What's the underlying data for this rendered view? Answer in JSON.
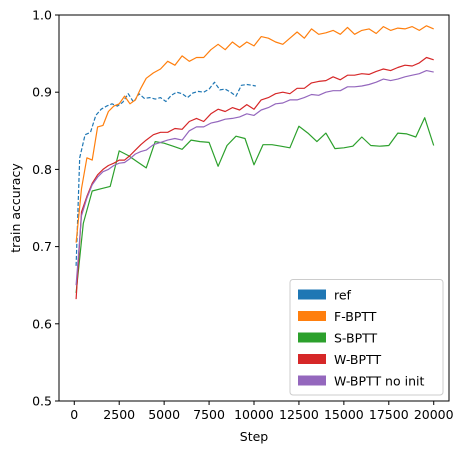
{
  "chart_data": {
    "type": "line",
    "xlabel": "Step",
    "ylabel": "train accuracy",
    "xlim": [
      -850,
      20850
    ],
    "ylim": [
      0.5,
      1.0
    ],
    "xticks": [
      0,
      2500,
      5000,
      7500,
      10000,
      12500,
      15000,
      17500,
      20000
    ],
    "xtick_labels": [
      "0",
      "2500",
      "5000",
      "7500",
      "10000",
      "12500",
      "15000",
      "17500",
      "20000"
    ],
    "yticks": [
      0.5,
      0.6,
      0.7,
      0.8,
      0.9,
      1.0
    ],
    "ytick_labels": [
      "0.5",
      "0.6",
      "0.7",
      "0.8",
      "0.9",
      "1.0"
    ],
    "grid": false,
    "legend_position": "bottom-right",
    "series": [
      {
        "name": "ref",
        "color": "#1f77b4",
        "dashed": true,
        "x": [
          100,
          300,
          600,
          900,
          1200,
          1500,
          1800,
          2100,
          2400,
          2700,
          3000,
          3300,
          3600,
          3900,
          4200,
          4500,
          4800,
          5100,
          5400,
          5700,
          6000,
          6300,
          6600,
          6900,
          7200,
          7500,
          7800,
          8100,
          8400,
          8700,
          9000,
          9300,
          9600,
          9900,
          10100
        ],
        "y": [
          0.675,
          0.815,
          0.845,
          0.848,
          0.87,
          0.878,
          0.882,
          0.885,
          0.882,
          0.887,
          0.898,
          0.887,
          0.898,
          0.892,
          0.893,
          0.891,
          0.893,
          0.888,
          0.896,
          0.9,
          0.898,
          0.893,
          0.899,
          0.901,
          0.9,
          0.904,
          0.913,
          0.903,
          0.904,
          0.9,
          0.895,
          0.909,
          0.91,
          0.909,
          0.908
        ]
      },
      {
        "name": "F-BPTT",
        "color": "#ff7f0e",
        "dashed": false,
        "x": [
          100,
          400,
          700,
          1000,
          1300,
          1600,
          1900,
          2200,
          2500,
          2800,
          3100,
          3400,
          3700,
          4000,
          4400,
          4800,
          5200,
          5600,
          6000,
          6400,
          6800,
          7200,
          7600,
          8000,
          8400,
          8800,
          9200,
          9600,
          10000,
          10400,
          10800,
          11200,
          11600,
          12000,
          12400,
          12800,
          13200,
          13600,
          14000,
          14400,
          14800,
          15200,
          15600,
          16000,
          16400,
          16800,
          17200,
          17600,
          18000,
          18400,
          18800,
          19200,
          19600,
          20000
        ],
        "y": [
          0.705,
          0.775,
          0.815,
          0.812,
          0.855,
          0.857,
          0.875,
          0.882,
          0.885,
          0.895,
          0.885,
          0.89,
          0.905,
          0.918,
          0.925,
          0.93,
          0.94,
          0.935,
          0.947,
          0.94,
          0.945,
          0.945,
          0.955,
          0.962,
          0.955,
          0.965,
          0.958,
          0.965,
          0.96,
          0.972,
          0.97,
          0.965,
          0.962,
          0.97,
          0.978,
          0.97,
          0.982,
          0.975,
          0.977,
          0.98,
          0.975,
          0.984,
          0.975,
          0.98,
          0.982,
          0.976,
          0.985,
          0.98,
          0.983,
          0.982,
          0.985,
          0.98,
          0.986,
          0.982
        ]
      },
      {
        "name": "S-BPTT",
        "color": "#2ca02c",
        "dashed": false,
        "x": [
          100,
          500,
          1000,
          1500,
          2000,
          2500,
          3000,
          3500,
          4000,
          4500,
          5000,
          5500,
          6000,
          6500,
          7000,
          7500,
          8000,
          8500,
          9000,
          9500,
          10000,
          10500,
          11000,
          11500,
          12000,
          12500,
          13000,
          13500,
          14000,
          14500,
          15000,
          15500,
          16000,
          16500,
          17000,
          17500,
          18000,
          18500,
          19000,
          19500,
          20000
        ],
        "y": [
          0.64,
          0.73,
          0.772,
          0.775,
          0.778,
          0.824,
          0.818,
          0.81,
          0.802,
          0.836,
          0.834,
          0.83,
          0.826,
          0.838,
          0.836,
          0.835,
          0.804,
          0.831,
          0.843,
          0.84,
          0.806,
          0.832,
          0.832,
          0.83,
          0.828,
          0.856,
          0.847,
          0.836,
          0.847,
          0.827,
          0.828,
          0.83,
          0.842,
          0.831,
          0.83,
          0.831,
          0.847,
          0.846,
          0.842,
          0.867,
          0.831
        ]
      },
      {
        "name": "W-BPTT",
        "color": "#d62728",
        "dashed": false,
        "x": [
          100,
          400,
          700,
          1000,
          1300,
          1600,
          1900,
          2200,
          2500,
          2800,
          3100,
          3400,
          3700,
          4000,
          4400,
          4800,
          5200,
          5600,
          6000,
          6400,
          6800,
          7200,
          7600,
          8000,
          8400,
          8800,
          9200,
          9600,
          10000,
          10400,
          10800,
          11200,
          11600,
          12000,
          12400,
          12800,
          13200,
          13600,
          14000,
          14400,
          14800,
          15200,
          15600,
          16000,
          16400,
          16800,
          17200,
          17600,
          18000,
          18400,
          18800,
          19200,
          19600,
          20000
        ],
        "y": [
          0.632,
          0.745,
          0.765,
          0.782,
          0.793,
          0.8,
          0.805,
          0.808,
          0.812,
          0.812,
          0.818,
          0.825,
          0.832,
          0.838,
          0.845,
          0.848,
          0.848,
          0.853,
          0.852,
          0.862,
          0.866,
          0.862,
          0.872,
          0.878,
          0.875,
          0.88,
          0.877,
          0.884,
          0.878,
          0.89,
          0.893,
          0.898,
          0.9,
          0.898,
          0.905,
          0.905,
          0.912,
          0.914,
          0.915,
          0.92,
          0.916,
          0.922,
          0.922,
          0.924,
          0.923,
          0.927,
          0.93,
          0.928,
          0.932,
          0.935,
          0.934,
          0.938,
          0.945,
          0.942
        ]
      },
      {
        "name": "W-BPTT no init",
        "color": "#9467bd",
        "dashed": false,
        "x": [
          100,
          400,
          700,
          1000,
          1300,
          1600,
          1900,
          2200,
          2500,
          2800,
          3100,
          3400,
          3700,
          4000,
          4400,
          4800,
          5200,
          5600,
          6000,
          6400,
          6800,
          7200,
          7600,
          8000,
          8400,
          8800,
          9200,
          9600,
          10000,
          10400,
          10800,
          11200,
          11600,
          12000,
          12400,
          12800,
          13200,
          13600,
          14000,
          14400,
          14800,
          15200,
          15600,
          16000,
          16400,
          16800,
          17200,
          17600,
          18000,
          18400,
          18800,
          19200,
          19600,
          20000
        ],
        "y": [
          0.65,
          0.74,
          0.763,
          0.78,
          0.79,
          0.797,
          0.8,
          0.805,
          0.808,
          0.809,
          0.814,
          0.82,
          0.823,
          0.825,
          0.832,
          0.835,
          0.838,
          0.84,
          0.838,
          0.85,
          0.855,
          0.855,
          0.86,
          0.862,
          0.865,
          0.866,
          0.868,
          0.872,
          0.87,
          0.877,
          0.88,
          0.885,
          0.886,
          0.89,
          0.89,
          0.893,
          0.897,
          0.896,
          0.9,
          0.902,
          0.902,
          0.907,
          0.907,
          0.908,
          0.91,
          0.913,
          0.917,
          0.915,
          0.917,
          0.92,
          0.922,
          0.924,
          0.928,
          0.926
        ]
      }
    ]
  }
}
